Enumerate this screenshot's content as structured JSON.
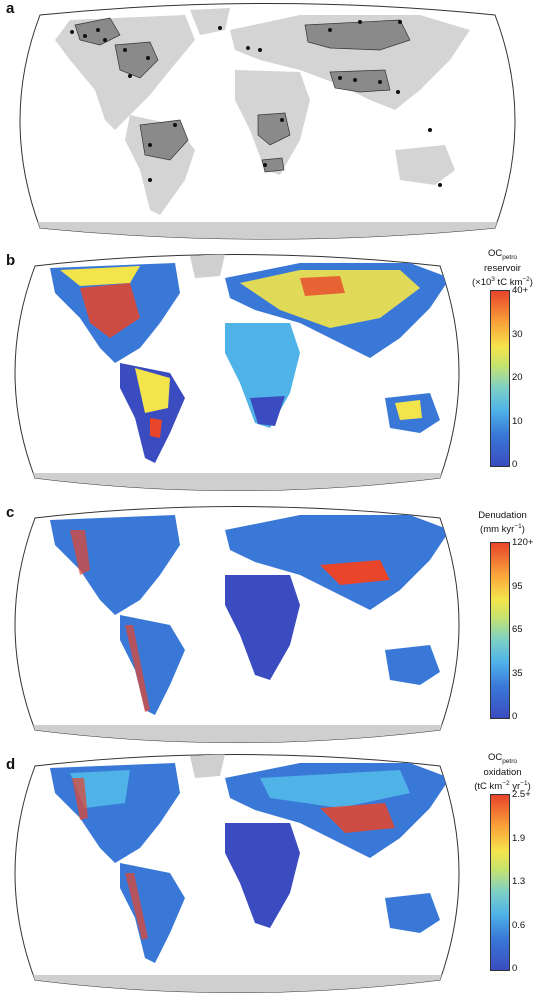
{
  "panels": [
    {
      "letter": "a"
    },
    {
      "letter": "b",
      "legend": {
        "title_main": "OC",
        "title_sub": "petro",
        "title_line2": "reservoir",
        "title_line3": "(×10",
        "title_sup": "3",
        "title_line3b": " tC km",
        "title_sup2": "−2",
        "title_line3c": ")"
      },
      "ticks": [
        "40+",
        "30",
        "20",
        "10",
        "0"
      ]
    },
    {
      "letter": "c",
      "legend": {
        "title_line1": "Denudation",
        "title_line2": "(mm kyr",
        "title_sup": "−1",
        "title_line2b": ")"
      },
      "ticks": [
        "120+",
        "95",
        "65",
        "35",
        "0"
      ]
    },
    {
      "letter": "d",
      "legend": {
        "title_main": "OC",
        "title_sub": "petro",
        "title_line2": "oxidation",
        "title_line3": "(tC km",
        "title_sup": "−2",
        "title_line3b": " yr",
        "title_sup2": "−1",
        "title_line3c": ")"
      },
      "ticks": [
        "2.5+",
        "1.9",
        "1.3",
        "0.6",
        "0"
      ]
    }
  ],
  "colors": {
    "land_grey": "#d4d4d4",
    "basin_grey": "#8a8a8a",
    "antarctica": "#cfcfcf",
    "low": "#3b4cc0",
    "mid": "#7fd1c4",
    "high_yellow": "#f4e44b",
    "high": "#e8452b"
  }
}
